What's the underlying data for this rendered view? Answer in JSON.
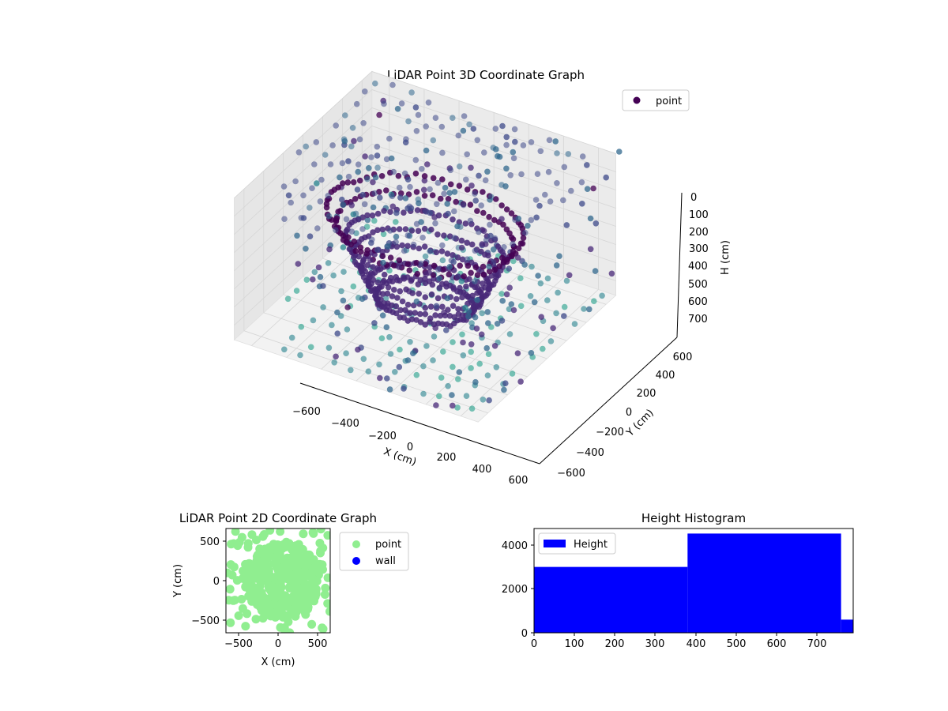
{
  "chart_data": [
    {
      "type": "scatter3d",
      "title": "LiDAR Point 3D Coordinate Graph",
      "xlabel": "X (cm)",
      "ylabel": "Y (cm)",
      "zlabel": "H (cm)",
      "x_ticks": [
        "−600",
        "−400",
        "−200",
        "0",
        "200",
        "400",
        "600"
      ],
      "y_ticks": [
        "−600",
        "−400",
        "−200",
        "0",
        "200",
        "400",
        "600"
      ],
      "z_ticks": [
        "0",
        "100",
        "200",
        "300",
        "400",
        "500",
        "600",
        "700"
      ],
      "xlim": [
        -700,
        700
      ],
      "ylim": [
        -700,
        700
      ],
      "zlim": [
        0,
        780
      ],
      "z_inverted": true,
      "legend": {
        "label": "point",
        "placement": "top-right"
      },
      "colormap": "viridis",
      "grid": true,
      "structures": {
        "ceiling_grid": {
          "height": 0,
          "spacing": 100,
          "extent": 650
        },
        "floor_grid": {
          "height": 780,
          "spacing": 100,
          "extent": 650
        },
        "spiral_rings": [
          {
            "height": 250,
            "radius": 520
          },
          {
            "height": 320,
            "radius": 470
          },
          {
            "height": 400,
            "radius": 420
          },
          {
            "height": 480,
            "radius": 380
          },
          {
            "height": 560,
            "radius": 340
          },
          {
            "height": 630,
            "radius": 300
          },
          {
            "height": 690,
            "radius": 260
          }
        ]
      }
    },
    {
      "type": "scatter",
      "title": "LiDAR Point 2D Coordinate Graph",
      "xlabel": "X (cm)",
      "ylabel": "Y (cm)",
      "x_ticks": [
        "−500",
        "0",
        "500"
      ],
      "y_ticks": [
        "−500",
        "0",
        "500"
      ],
      "xlim": [
        -660,
        660
      ],
      "ylim": [
        -660,
        660
      ],
      "legend": {
        "placement": "outside-right",
        "entries": [
          {
            "label": "point",
            "color": "#90ee90"
          },
          {
            "label": "wall",
            "color": "#0000ff"
          }
        ]
      },
      "series": [
        {
          "name": "point",
          "color": "#90ee90"
        },
        {
          "name": "wall",
          "color": "#0000ff",
          "count": 0
        }
      ]
    },
    {
      "type": "bar",
      "title": "Height Histogram",
      "legend": {
        "label": "Height",
        "color": "#0000ff",
        "placement": "top-left"
      },
      "x_ticks": [
        "0",
        "100",
        "200",
        "300",
        "400",
        "500",
        "600",
        "700"
      ],
      "y_ticks": [
        "0",
        "2000",
        "4000"
      ],
      "xlim": [
        0,
        790
      ],
      "ylim": [
        0,
        4750
      ],
      "bins": [
        {
          "from": 0,
          "to": 380,
          "value": 3000
        },
        {
          "from": 380,
          "to": 760,
          "value": 4520
        },
        {
          "from": 760,
          "to": 790,
          "value": 600
        }
      ]
    }
  ]
}
